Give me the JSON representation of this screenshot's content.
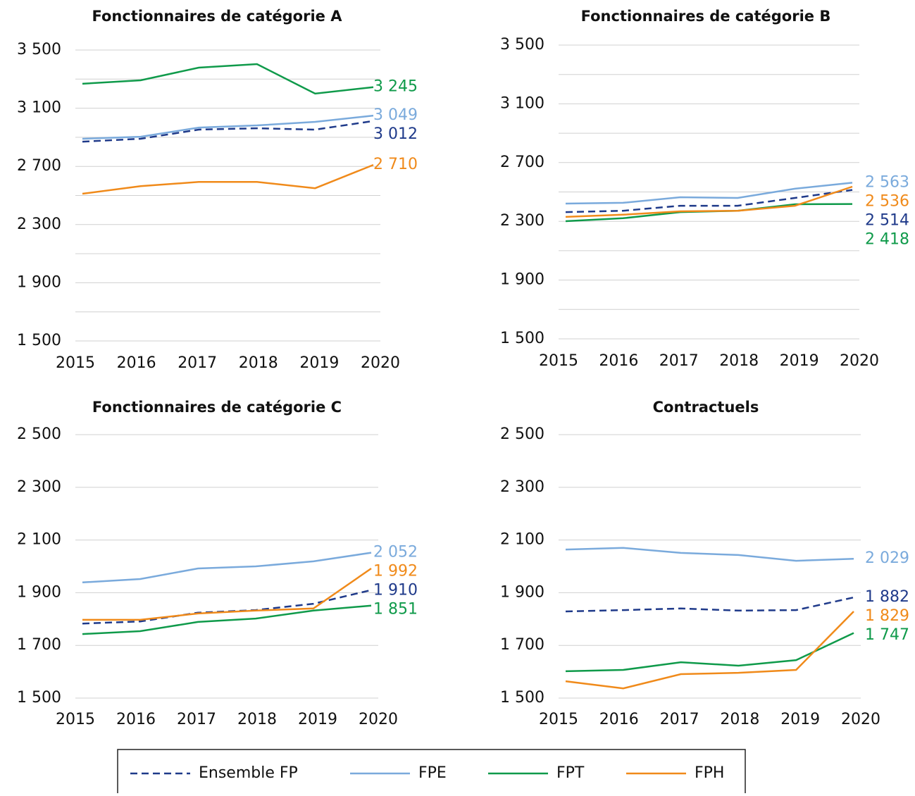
{
  "chart_data": [
    {
      "type": "line",
      "title": "Fonctionnaires de catégorie A",
      "categories": [
        "2015",
        "2016",
        "2017",
        "2018",
        "2019",
        "2020"
      ],
      "ylim": [
        1500,
        3500
      ],
      "yticks": [
        {
          "value": 1500,
          "label": "1 500"
        },
        {
          "value": 1900,
          "label": "1 900"
        },
        {
          "value": 2300,
          "label": "2 300"
        },
        {
          "value": 2700,
          "label": "2 700"
        },
        {
          "value": 3100,
          "label": "3 100"
        },
        {
          "value": 3500,
          "label": "3 500"
        }
      ],
      "minor_yticks": [
        1700,
        2100,
        2500,
        2900,
        3300
      ],
      "grid": true,
      "series": [
        {
          "name": "Ensemble FP",
          "color": "#1f3a8a",
          "dashed": true,
          "values": [
            2870,
            2890,
            2953,
            2962,
            2953,
            3012
          ],
          "value_labels": [
            null,
            null,
            null,
            null,
            null,
            "3 012"
          ]
        },
        {
          "name": "FPE",
          "color": "#7aaadc",
          "values": [
            2890,
            2904,
            2967,
            2982,
            3006,
            3049
          ],
          "value_labels": [
            null,
            null,
            null,
            null,
            null,
            "3 049"
          ]
        },
        {
          "name": "FPT",
          "color": "#0f9a4a",
          "values": [
            3268,
            3292,
            3379,
            3403,
            3200,
            3245
          ],
          "value_labels": [
            null,
            null,
            null,
            null,
            null,
            "3 245"
          ]
        },
        {
          "name": "FPH",
          "color": "#f08a1a",
          "values": [
            2512,
            2564,
            2593,
            2593,
            2550,
            2710
          ],
          "value_labels": [
            null,
            null,
            null,
            null,
            null,
            "2 710"
          ]
        }
      ]
    },
    {
      "type": "line",
      "title": "Fonctionnaires de catégorie B",
      "categories": [
        "2015",
        "2016",
        "2017",
        "2018",
        "2019",
        "2020"
      ],
      "ylim": [
        1500,
        3500
      ],
      "yticks": [
        {
          "value": 1500,
          "label": "1 500"
        },
        {
          "value": 1900,
          "label": "1 900"
        },
        {
          "value": 2300,
          "label": "2 300"
        },
        {
          "value": 2700,
          "label": "2 700"
        },
        {
          "value": 3100,
          "label": "3 100"
        },
        {
          "value": 3500,
          "label": "3 500"
        }
      ],
      "minor_yticks": [
        1700,
        2100,
        2500,
        2900,
        3300
      ],
      "grid": true,
      "series": [
        {
          "name": "Ensemble FP",
          "color": "#1f3a8a",
          "dashed": true,
          "values": [
            2363,
            2372,
            2406,
            2406,
            2459,
            2514
          ],
          "value_labels": [
            null,
            null,
            null,
            null,
            null,
            "2 514"
          ]
        },
        {
          "name": "FPE",
          "color": "#7aaadc",
          "values": [
            2421,
            2426,
            2464,
            2459,
            2522,
            2563
          ],
          "value_labels": [
            null,
            null,
            null,
            null,
            null,
            "2 563"
          ]
        },
        {
          "name": "FPT",
          "color": "#0f9a4a",
          "values": [
            2301,
            2321,
            2363,
            2372,
            2416,
            2418
          ],
          "value_labels": [
            null,
            null,
            null,
            null,
            null,
            "2 418"
          ]
        },
        {
          "name": "FPH",
          "color": "#f08a1a",
          "values": [
            2330,
            2345,
            2368,
            2372,
            2406,
            2536
          ],
          "value_labels": [
            null,
            null,
            null,
            null,
            null,
            "2 536"
          ]
        }
      ]
    },
    {
      "type": "line",
      "title": "Fonctionnaires de catégorie C",
      "categories": [
        "2015",
        "2016",
        "2017",
        "2018",
        "2019",
        "2020"
      ],
      "ylim": [
        1500,
        2500
      ],
      "yticks": [
        {
          "value": 1500,
          "label": "1 500"
        },
        {
          "value": 1700,
          "label": "1 700"
        },
        {
          "value": 1900,
          "label": "1 900"
        },
        {
          "value": 2100,
          "label": "2 100"
        },
        {
          "value": 2300,
          "label": "2 300"
        },
        {
          "value": 2500,
          "label": "2 500"
        }
      ],
      "grid": true,
      "series": [
        {
          "name": "Ensemble FP",
          "color": "#1f3a8a",
          "dashed": true,
          "values": [
            1783,
            1791,
            1824,
            1834,
            1858,
            1910
          ],
          "value_labels": [
            null,
            null,
            null,
            null,
            null,
            "1 910"
          ]
        },
        {
          "name": "FPE",
          "color": "#7aaadc",
          "values": [
            1939,
            1952,
            1992,
            2000,
            2019,
            2052
          ],
          "value_labels": [
            null,
            null,
            null,
            null,
            null,
            "2 052"
          ]
        },
        {
          "name": "FPT",
          "color": "#0f9a4a",
          "values": [
            1743,
            1754,
            1789,
            1802,
            1832,
            1851
          ],
          "value_labels": [
            null,
            null,
            null,
            null,
            null,
            "1 851"
          ]
        },
        {
          "name": "FPH",
          "color": "#f08a1a",
          "values": [
            1797,
            1797,
            1821,
            1832,
            1840,
            1992
          ],
          "value_labels": [
            null,
            null,
            null,
            null,
            null,
            "1 992"
          ]
        }
      ]
    },
    {
      "type": "line",
      "title": "Contractuels",
      "categories": [
        "2015",
        "2016",
        "2017",
        "2018",
        "2019",
        "2020"
      ],
      "ylim": [
        1500,
        2500
      ],
      "yticks": [
        {
          "value": 1500,
          "label": "1 500"
        },
        {
          "value": 1700,
          "label": "1 700"
        },
        {
          "value": 1900,
          "label": "1 900"
        },
        {
          "value": 2100,
          "label": "2 100"
        },
        {
          "value": 2300,
          "label": "2 300"
        },
        {
          "value": 2500,
          "label": "2 500"
        }
      ],
      "grid": true,
      "series": [
        {
          "name": "Ensemble FP",
          "color": "#1f3a8a",
          "dashed": true,
          "values": [
            1829,
            1834,
            1840,
            1832,
            1834,
            1882
          ],
          "value_labels": [
            null,
            null,
            null,
            null,
            null,
            "1 882"
          ]
        },
        {
          "name": "FPE",
          "color": "#7aaadc",
          "values": [
            2064,
            2070,
            2051,
            2043,
            2021,
            2029
          ],
          "value_labels": [
            null,
            null,
            null,
            null,
            null,
            "2 029"
          ]
        },
        {
          "name": "FPT",
          "color": "#0f9a4a",
          "values": [
            1602,
            1607,
            1636,
            1623,
            1644,
            1747
          ],
          "value_labels": [
            null,
            null,
            null,
            null,
            null,
            "1 747"
          ]
        },
        {
          "name": "FPH",
          "color": "#f08a1a",
          "values": [
            1564,
            1537,
            1591,
            1596,
            1607,
            1829
          ],
          "value_labels": [
            null,
            null,
            null,
            null,
            null,
            "1 829"
          ]
        }
      ]
    }
  ]
}
